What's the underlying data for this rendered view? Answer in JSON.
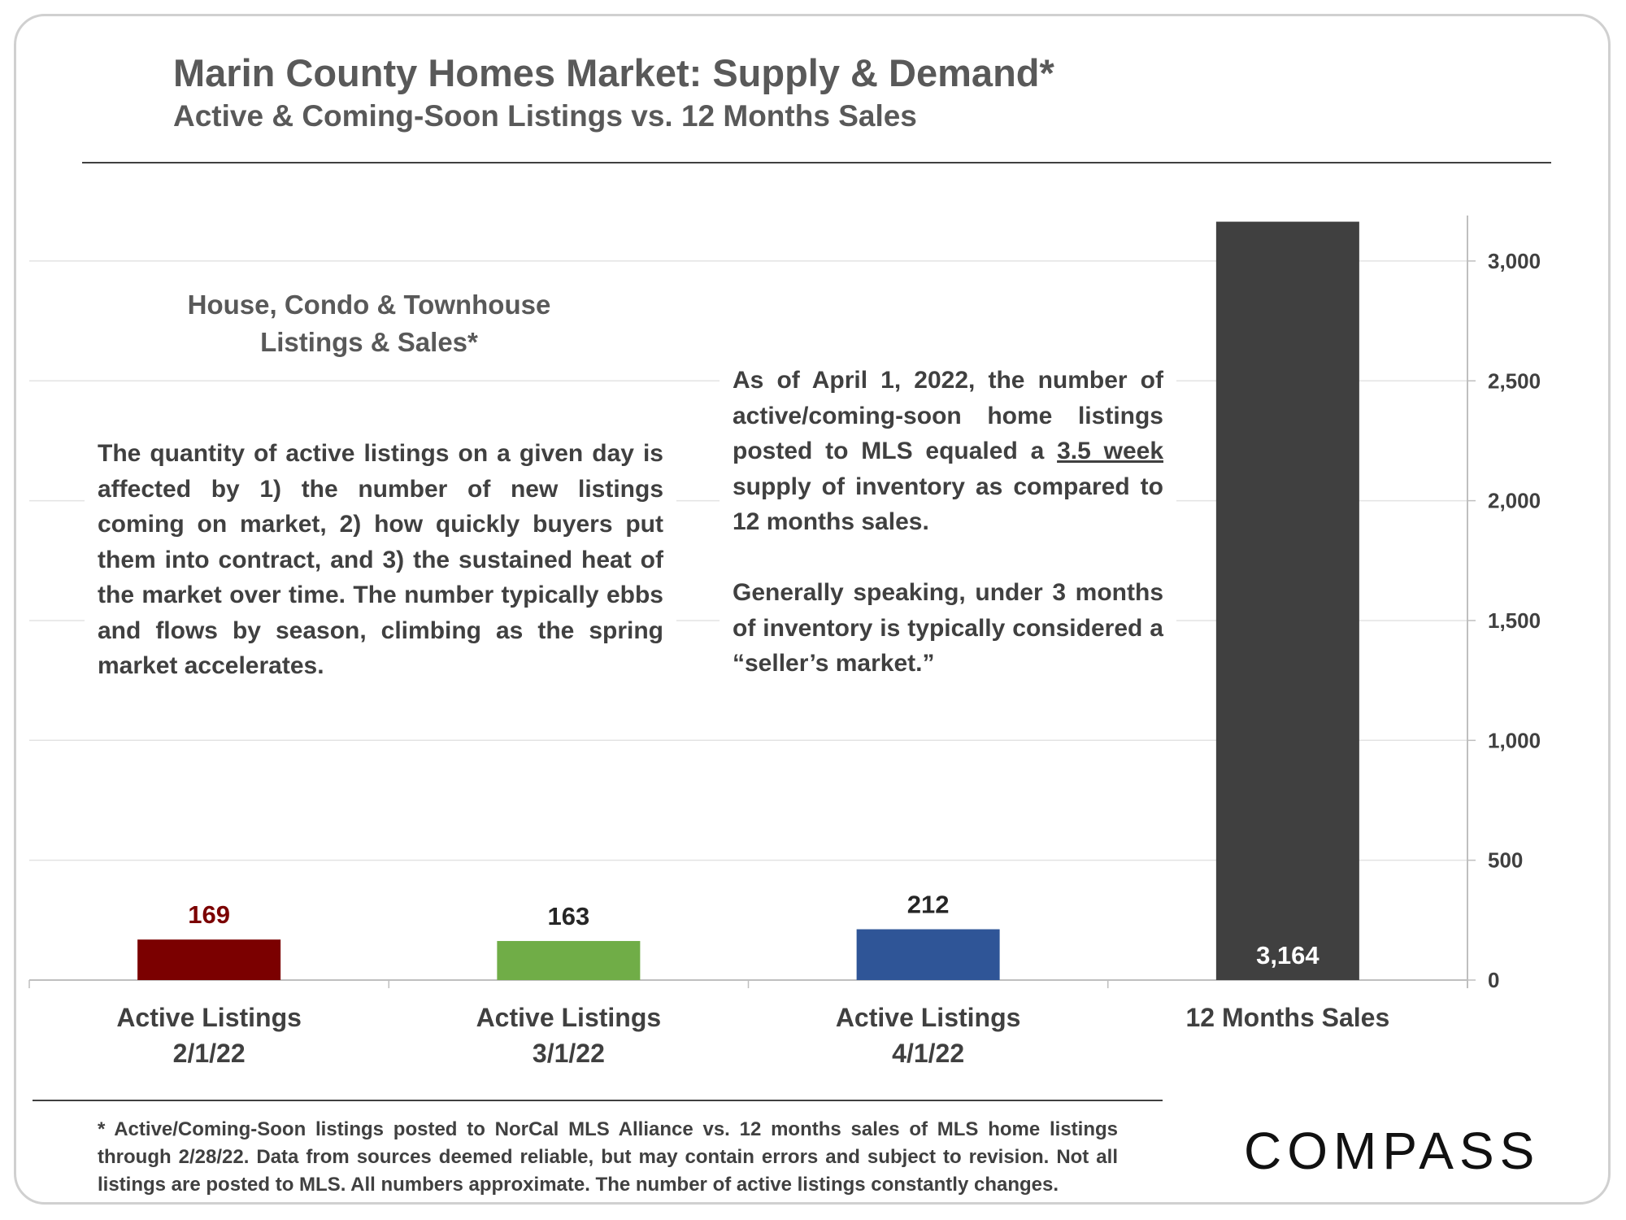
{
  "header": {
    "title": "Marin County Homes Market: Supply & Demand*",
    "subtitle": "Active & Coming-Soon Listings vs. 12 Months Sales"
  },
  "annotations": {
    "heading_line1": "House, Condo & Townhouse",
    "heading_line2": "Listings & Sales*",
    "left_text": "The quantity of active listings on a given day is affected by 1) the number of new listings coming on market, 2) how quickly buyers put them into contract, and 3) the sustained heat of the market over time. The number typically ebbs and flows by season, climbing as the spring market accelerates.",
    "right_p1_before": "As of April 1, 2022, the number of active/coming-soon home listings posted to MLS equaled a ",
    "right_p1_underlined": "3.5 week",
    "right_p1_after": " supply of inventory as compared to 12 months sales.",
    "right_p2": "Generally speaking, under 3 months of inventory is typically considered a “seller’s market.”"
  },
  "footnote": "* Active/Coming-Soon listings posted to NorCal MLS Alliance vs. 12 months sales of MLS home listings through 2/28/22.  Data from sources deemed reliable, but may contain errors and subject to revision.  Not all listings are posted to MLS. All numbers approximate. The number of active listings constantly changes.",
  "logo": {
    "text": "COMPASS"
  },
  "chart_data": {
    "type": "bar",
    "categories": [
      [
        "Active Listings",
        "2/1/22"
      ],
      [
        "Active Listings",
        "3/1/22"
      ],
      [
        "Active Listings",
        "4/1/22"
      ],
      [
        "12 Months Sales"
      ]
    ],
    "values": [
      169,
      163,
      212,
      3164
    ],
    "data_labels": [
      "169",
      "163",
      "212",
      "3,164"
    ],
    "colors": [
      "#7b0000",
      "#70ad47",
      "#2f5597",
      "#404040"
    ],
    "label_colors": [
      "#7b0000",
      "#262626",
      "#262626",
      "#ffffff"
    ],
    "label_positions": [
      "above",
      "above",
      "above",
      "inside"
    ],
    "ylim": [
      0,
      3200
    ],
    "yticks": [
      0,
      500,
      1000,
      1500,
      2000,
      2500,
      3000
    ],
    "ytick_labels": [
      "0",
      "500",
      "1,000",
      "1,500",
      "2,000",
      "2,500",
      "3,000"
    ],
    "y_axis_position": "right",
    "grid": true,
    "legend": "none"
  }
}
